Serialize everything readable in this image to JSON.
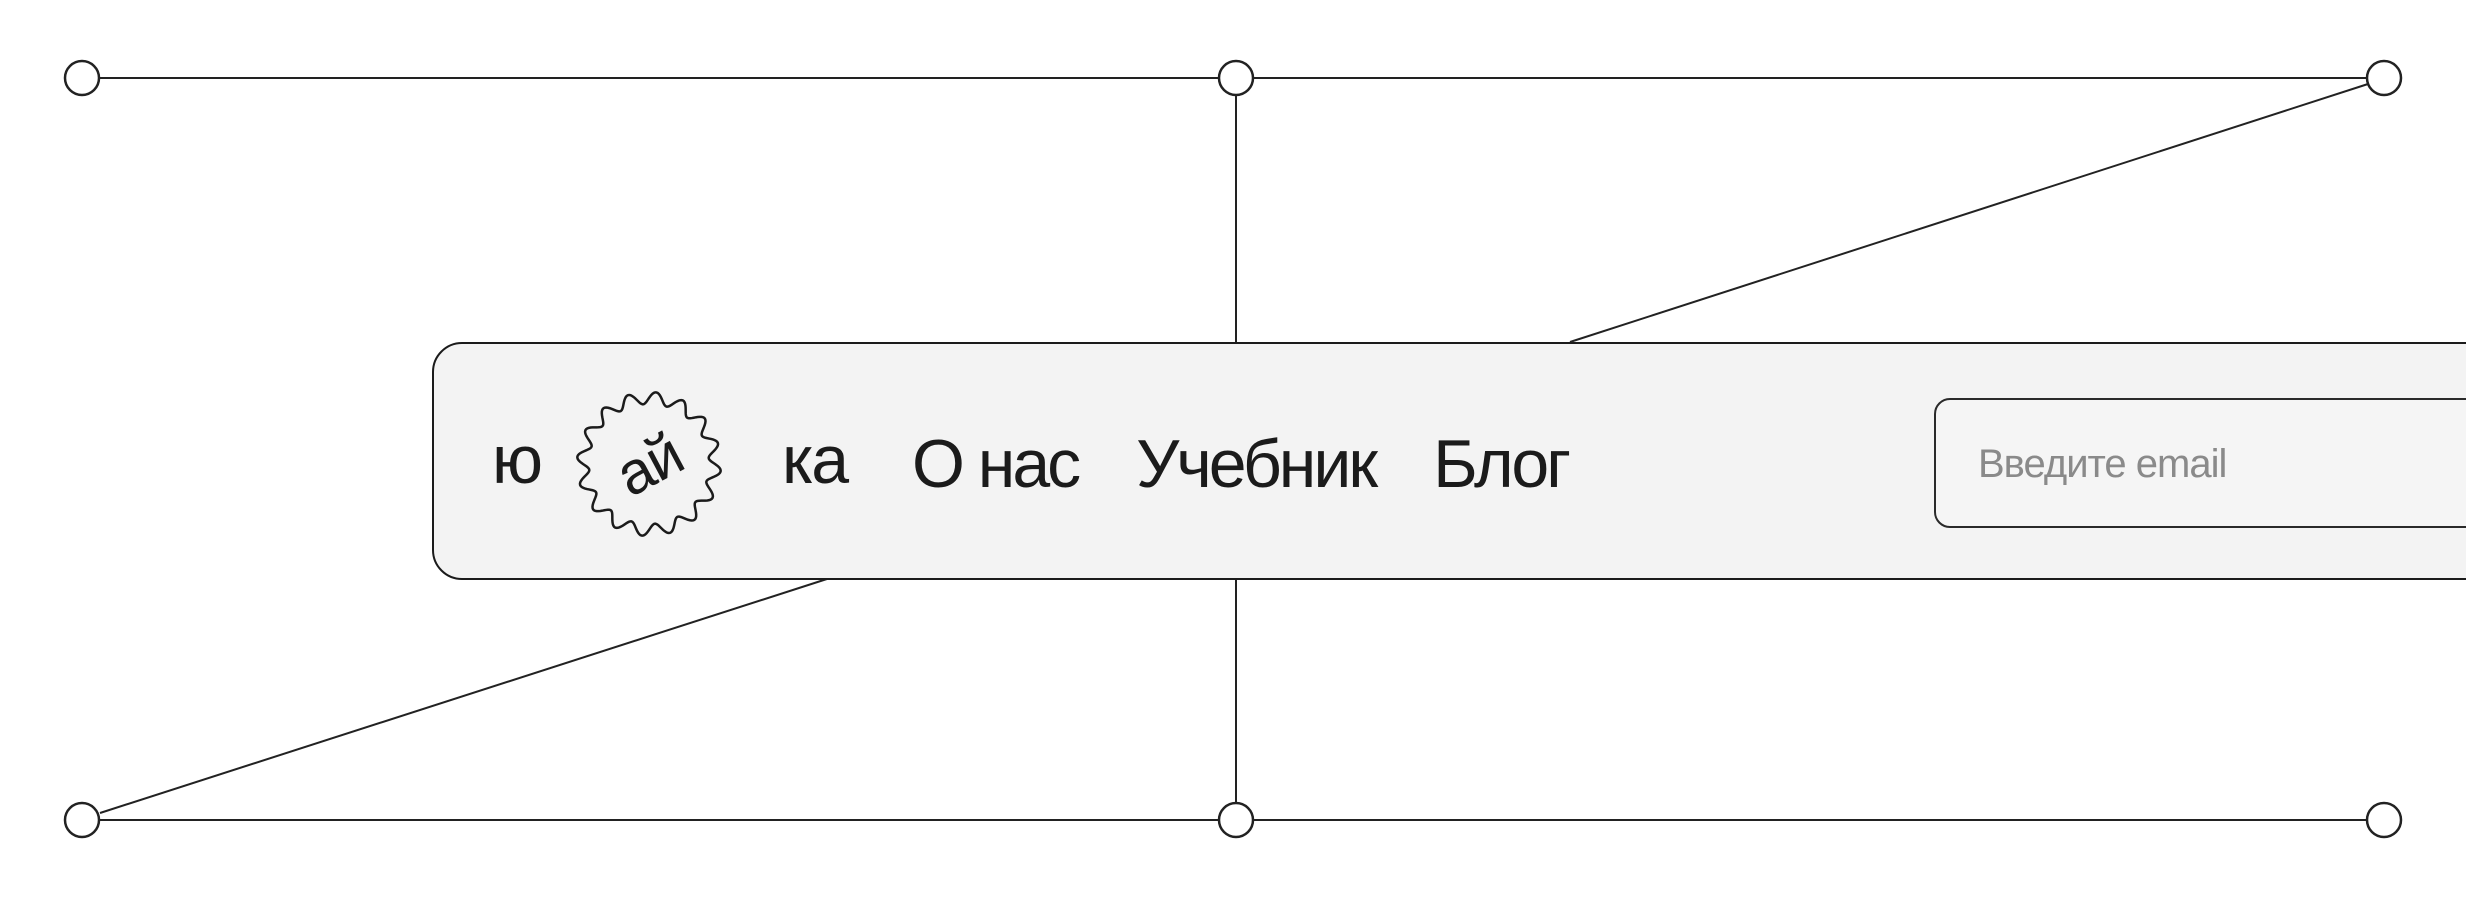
{
  "logo": {
    "left": "ю",
    "badge": "ай",
    "right": "ка"
  },
  "nav": {
    "items": [
      {
        "label": "О нас"
      },
      {
        "label": "Учебник"
      },
      {
        "label": "Блог"
      }
    ]
  },
  "email": {
    "placeholder": "Введите email",
    "value": ""
  },
  "colors": {
    "ink": "#1b1b1b",
    "panel": "#f3f3f3",
    "background": "#ffffff",
    "placeholder": "#8a8a8a"
  }
}
